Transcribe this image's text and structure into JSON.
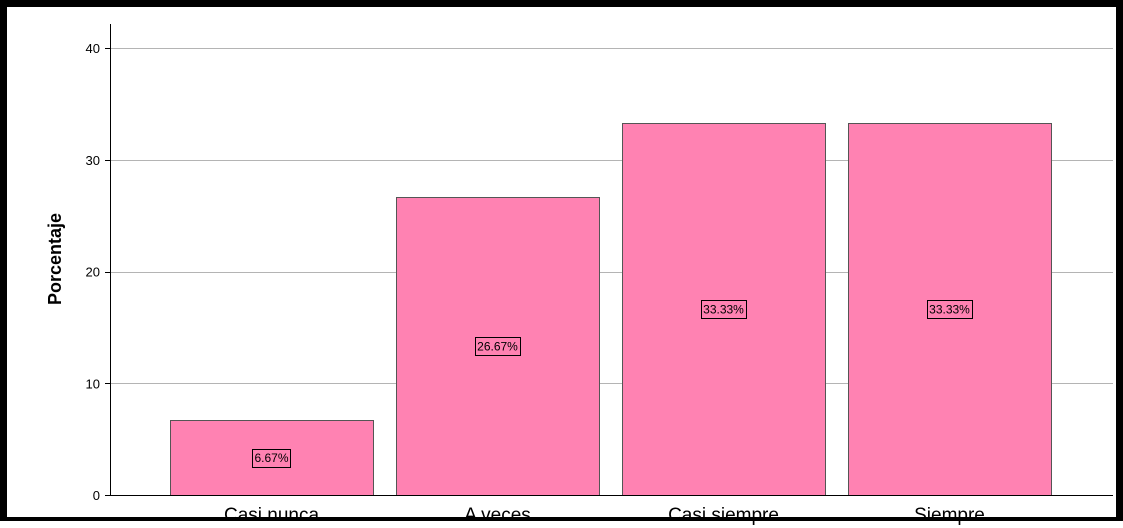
{
  "chart_data": {
    "type": "bar",
    "categories": [
      "Casi nunca",
      "A veces",
      "Casi siempre",
      "Siempre"
    ],
    "values": [
      6.67,
      26.67,
      33.33,
      33.33
    ],
    "data_labels": [
      "6.67%",
      "26.67%",
      "33.33%",
      "33.33%"
    ],
    "title": "",
    "xlabel": "",
    "ylabel": "Porcentaje",
    "ylim": [
      0,
      40
    ],
    "yticks": [
      0,
      10,
      20,
      30,
      40
    ],
    "ytick_labels": [
      "0",
      "10",
      "20",
      "30",
      "40"
    ],
    "grid": true,
    "legend": "none",
    "colors": {
      "bar_fill": "#ff82b2",
      "bar_stroke": "#555555",
      "grid": "#b4b4b4",
      "axis": "#000000",
      "frame": "#000000",
      "label_box_fill": "#ff82b2",
      "label_box_stroke": "#000000"
    }
  }
}
